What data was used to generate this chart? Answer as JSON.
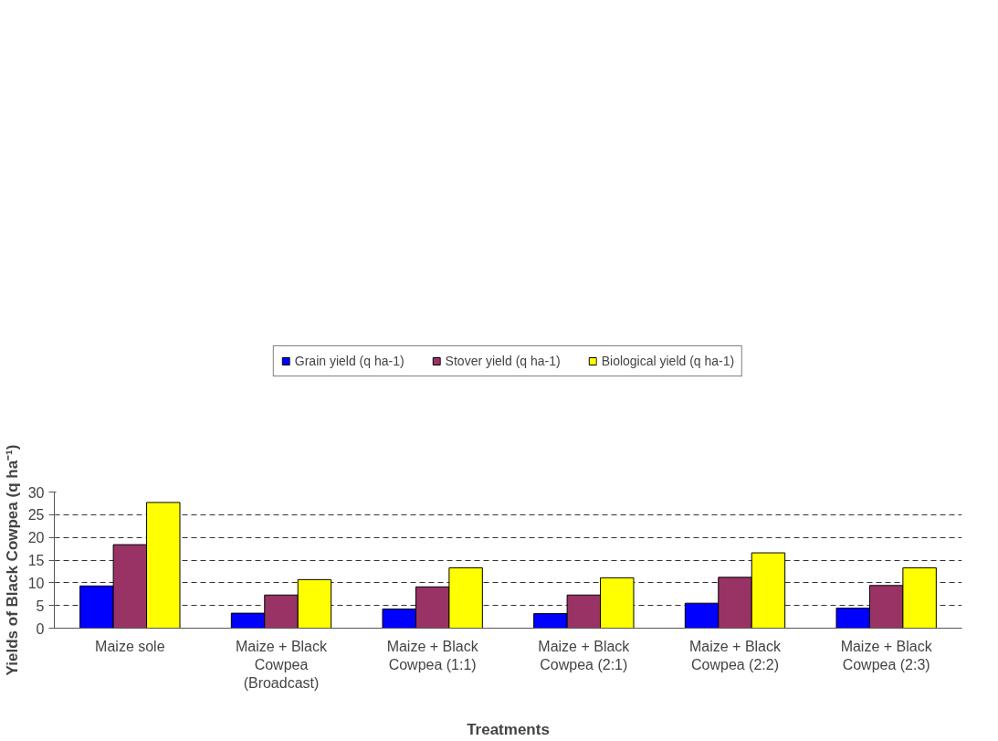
{
  "chart_data": {
    "type": "bar",
    "xlabel": "Treatments",
    "ylabel": "Yields of Black Cowpea (q ha⁻¹)",
    "categories": [
      "Maize sole",
      "Maize + Black Cowpea (Broadcast)",
      "Maize + Black Cowpea (1:1)",
      "Maize + Black Cowpea (2:1)",
      "Maize + Black Cowpea (2:2)",
      "Maize + Black Cowpea (2:3)"
    ],
    "series": [
      {
        "name": "Grain yield (q ha-1)",
        "color": "#0000ff",
        "values": [
          9.3,
          3.3,
          4.2,
          3.2,
          5.5,
          4.4
        ]
      },
      {
        "name": "Stover yield (q ha-1)",
        "color": "#993366",
        "values": [
          18.4,
          7.3,
          9.1,
          7.3,
          11.2,
          9.4
        ]
      },
      {
        "name": "Biological yield (q ha-1)",
        "color": "#ffff00",
        "values": [
          27.7,
          10.7,
          13.3,
          11.1,
          16.6,
          13.3
        ]
      }
    ],
    "ylim": [
      0,
      30
    ],
    "yticks": [
      0,
      5,
      10,
      15,
      20,
      25,
      30
    ],
    "grid": "y",
    "legend": "top",
    "line_style": "dashed"
  }
}
